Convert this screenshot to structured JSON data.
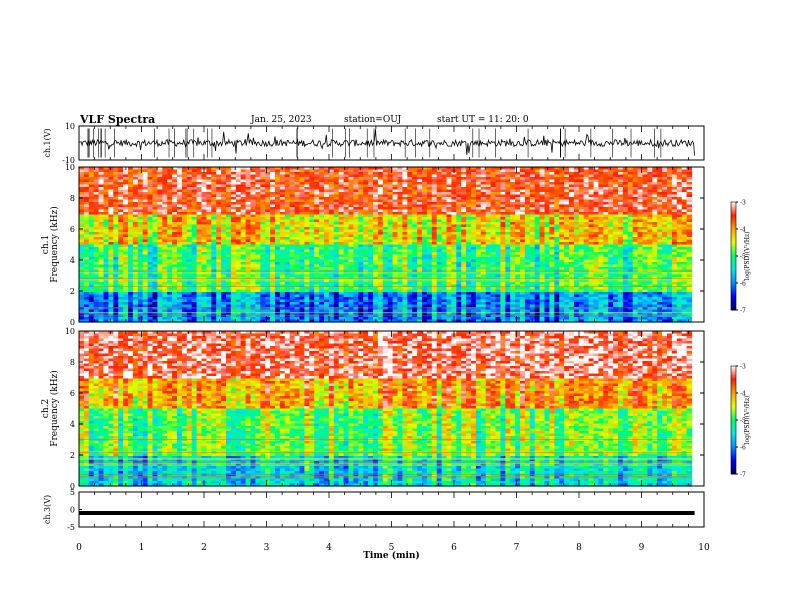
{
  "header": {
    "title": "VLF Spectra",
    "date": "Jan. 25, 2023",
    "station": "station=OUJ",
    "start": "start  UT =   11: 20: 0"
  },
  "chart_data": [
    {
      "type": "line",
      "panel": "ch1-waveform",
      "ylabel": "ch.1(V)",
      "ylim": [
        -10,
        10
      ],
      "ytick_labels": [
        "10",
        "-10"
      ],
      "baseline_level": 0,
      "color": "#000000"
    },
    {
      "type": "heatmap",
      "panel": "ch1-spectrogram",
      "ylabel": "ch.1\nFrequency  (kHz)",
      "ylim": [
        0,
        10
      ],
      "yticks": [
        0,
        2,
        4,
        6,
        8,
        10
      ],
      "xlim": [
        0,
        10
      ],
      "data_ends_at_min": 9.8,
      "description_levels": [
        {
          "freq_range_khz": [
            0,
            2
          ],
          "typical_log_psd": -6.0
        },
        {
          "freq_range_khz": [
            2,
            5
          ],
          "typical_log_psd": -5.0
        },
        {
          "freq_range_khz": [
            5,
            7
          ],
          "typical_log_psd": -4.3
        },
        {
          "freq_range_khz": [
            7,
            10
          ],
          "typical_log_psd": -3.5
        }
      ],
      "colorbar": {
        "label": "log(PSD)(V²/Hz)",
        "range": [
          -7,
          -3
        ],
        "tick_labels": [
          "-3",
          "-4",
          "-5",
          "-6",
          "-7"
        ]
      }
    },
    {
      "type": "heatmap",
      "panel": "ch2-spectrogram",
      "ylabel": "ch.2\nFrequency  (kHz)",
      "ylim": [
        0,
        10
      ],
      "yticks": [
        0,
        2,
        4,
        6,
        8,
        10
      ],
      "xlim": [
        0,
        10
      ],
      "data_ends_at_min": 9.8,
      "description_levels": [
        {
          "freq_range_khz": [
            0,
            2
          ],
          "typical_log_psd": -5.5
        },
        {
          "freq_range_khz": [
            2,
            5
          ],
          "typical_log_psd": -4.8
        },
        {
          "freq_range_khz": [
            5,
            7
          ],
          "typical_log_psd": -4.0
        },
        {
          "freq_range_khz": [
            7,
            10
          ],
          "typical_log_psd": -3.3
        }
      ],
      "colorbar": {
        "label": "log(PSD)(V²/Hz)",
        "range": [
          -7,
          -3
        ],
        "tick_labels": [
          "-3",
          "-4",
          "-5",
          "-6",
          "-7"
        ]
      }
    },
    {
      "type": "line",
      "panel": "ch3-waveform",
      "ylabel": "ch.3(V)",
      "ylim": [
        -5,
        5
      ],
      "ytick_labels": [
        "5",
        "0",
        "-5"
      ],
      "baseline_level": -1,
      "color": "#000000"
    }
  ],
  "xaxis": {
    "label": "Time  (min)",
    "ticks": [
      "0",
      "1",
      "2",
      "3",
      "4",
      "5",
      "6",
      "7",
      "8",
      "9",
      "10"
    ]
  },
  "colormap": [
    "#000060",
    "#0000ff",
    "#0090ff",
    "#00e8e8",
    "#00ff60",
    "#e0ff00",
    "#ffa000",
    "#ff2000",
    "#ffffff"
  ]
}
